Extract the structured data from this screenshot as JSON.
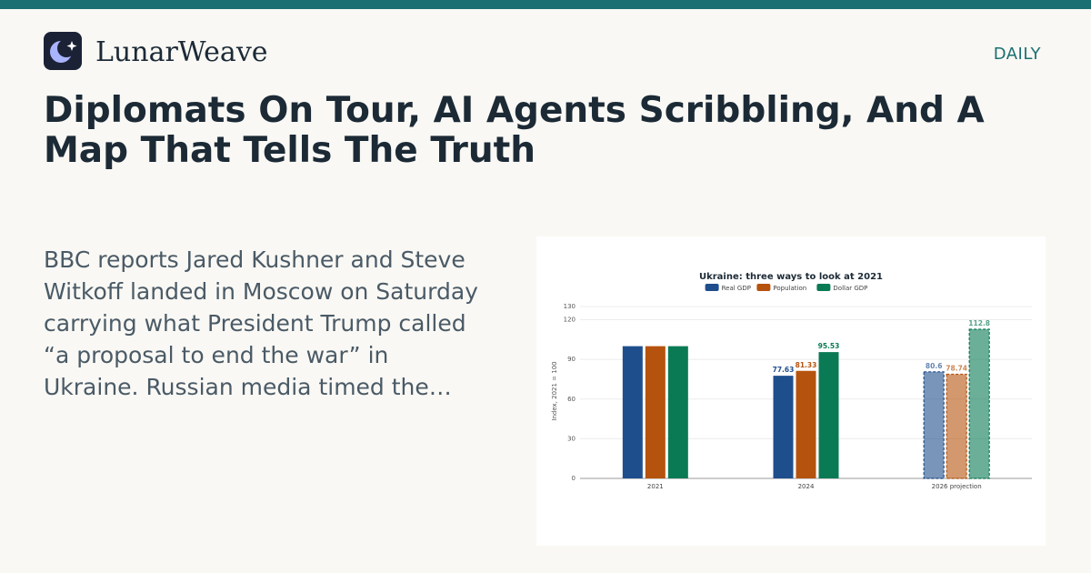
{
  "header": {
    "brand": "LunarWeave",
    "section": "DAILY"
  },
  "article": {
    "title": "Diplomats On Tour, AI Agents Scribbling, And A Map That Tells The Truth",
    "excerpt": "BBC reports Jared Kushner and Steve Witkoff landed in Moscow on Saturday carrying what President Trump called “a proposal to end the war” in Ukraine. Russian media timed the…"
  },
  "chart_data": {
    "type": "bar",
    "title": "Ukraine: three ways to look at 2021",
    "y_label": "Index, 2021 = 100",
    "categories": [
      "2021",
      "2024",
      "2026 projection"
    ],
    "projected": [
      false,
      false,
      true
    ],
    "series": [
      {
        "name": "Real GDP",
        "color": "#1f4e8c",
        "values": [
          100,
          77.63,
          80.6
        ],
        "value_labels": [
          null,
          "77.63",
          "80.6"
        ]
      },
      {
        "name": "Population",
        "color": "#b5530e",
        "values": [
          100,
          81.33,
          78.74
        ],
        "value_labels": [
          null,
          "81.33",
          "78.74"
        ]
      },
      {
        "name": "Dollar GDP",
        "color": "#0a7a55",
        "values": [
          100,
          95.53,
          112.8
        ],
        "value_labels": [
          null,
          "95.53",
          "112.8"
        ]
      }
    ],
    "ylim": [
      0,
      130
    ],
    "yticks": [
      0,
      30,
      60,
      90,
      120,
      130
    ],
    "grid": true,
    "legend": "top"
  }
}
